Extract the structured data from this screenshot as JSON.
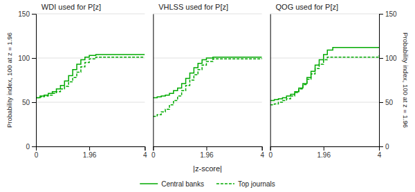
{
  "chart_data": [
    {
      "type": "step",
      "title": "WDI used for P[z]",
      "ylabel": "Probability index, 100 at z = 1.96",
      "xlim": [
        0,
        4
      ],
      "xticks": [
        0,
        1.96,
        4
      ],
      "ylim": [
        0,
        150
      ],
      "yticks": [
        0,
        50,
        100,
        150
      ],
      "grid": true,
      "legend": "bottom",
      "series": [
        {
          "name": "Central banks",
          "color": "#00aa00",
          "line_style": "solid",
          "x": [
            0,
            0.15,
            0.3,
            0.45,
            0.6,
            0.75,
            0.9,
            1.05,
            1.2,
            1.35,
            1.5,
            1.65,
            1.8,
            1.96,
            2.2,
            4.0
          ],
          "values": [
            55,
            57,
            58,
            60,
            62,
            65,
            69,
            74,
            80,
            87,
            93,
            98,
            101,
            103,
            104,
            104
          ]
        },
        {
          "name": "Top journals",
          "color": "#00aa00",
          "line_style": "dashed",
          "x": [
            0,
            0.15,
            0.3,
            0.45,
            0.6,
            0.75,
            0.9,
            1.05,
            1.2,
            1.35,
            1.5,
            1.65,
            1.8,
            1.96,
            2.2,
            4.0
          ],
          "values": [
            55,
            56,
            57,
            58,
            60,
            62,
            65,
            68,
            73,
            78,
            84,
            90,
            95,
            99,
            101,
            101
          ]
        }
      ]
    },
    {
      "type": "step",
      "title": "VHLSS used for P[z]",
      "xlabel": "|z-score|",
      "xlim": [
        0,
        4
      ],
      "xticks": [
        0,
        1.96,
        4
      ],
      "ylim": [
        0,
        150
      ],
      "yticks": [
        0,
        50,
        100,
        150
      ],
      "grid": true,
      "tick_labels": "x",
      "series": [
        {
          "color": "#00aa00",
          "line_style": "solid",
          "x": [
            0,
            0.15,
            0.3,
            0.45,
            0.6,
            0.75,
            0.9,
            1.05,
            1.2,
            1.35,
            1.5,
            1.65,
            1.8,
            1.96,
            2.2,
            4.0
          ],
          "values": [
            55,
            56,
            57,
            58,
            60,
            63,
            66,
            71,
            77,
            83,
            89,
            94,
            98,
            100,
            101,
            101
          ]
        },
        {
          "color": "#00aa00",
          "line_style": "dashed",
          "x": [
            0,
            0.15,
            0.3,
            0.45,
            0.6,
            0.75,
            0.9,
            1.05,
            1.2,
            1.35,
            1.5,
            1.65,
            1.8,
            1.96,
            2.2,
            4.0
          ],
          "values": [
            34,
            36,
            39,
            42,
            47,
            52,
            57,
            63,
            69,
            75,
            81,
            87,
            92,
            96,
            99,
            100
          ]
        }
      ]
    },
    {
      "type": "step",
      "title": "QOG used for P[z]",
      "y2label": "Probability index, 100 at z = 1.96",
      "xlim": [
        0,
        4
      ],
      "xticks": [
        0,
        1.96,
        4
      ],
      "ylim": [
        0,
        150
      ],
      "yticks": [
        0,
        50,
        100,
        150
      ],
      "y2lim": [
        0,
        150
      ],
      "y2ticks": [
        0,
        50,
        100,
        150
      ],
      "grid": true,
      "tick_labels": "x",
      "series": [
        {
          "color": "#00aa00",
          "line_style": "solid",
          "x": [
            0,
            0.15,
            0.3,
            0.45,
            0.6,
            0.75,
            0.9,
            1.05,
            1.2,
            1.35,
            1.5,
            1.65,
            1.8,
            1.96,
            2.1,
            2.3,
            4.0
          ],
          "values": [
            52,
            53,
            54,
            55,
            57,
            59,
            62,
            66,
            71,
            78,
            85,
            92,
            98,
            104,
            109,
            112,
            112
          ]
        },
        {
          "color": "#00aa00",
          "line_style": "dashed",
          "x": [
            0,
            0.15,
            0.3,
            0.45,
            0.6,
            0.75,
            0.9,
            1.05,
            1.2,
            1.35,
            1.5,
            1.65,
            1.8,
            1.96,
            2.1,
            4.0
          ],
          "values": [
            47,
            48,
            50,
            52,
            54,
            57,
            61,
            65,
            70,
            76,
            82,
            88,
            93,
            98,
            101,
            103
          ]
        }
      ]
    }
  ]
}
